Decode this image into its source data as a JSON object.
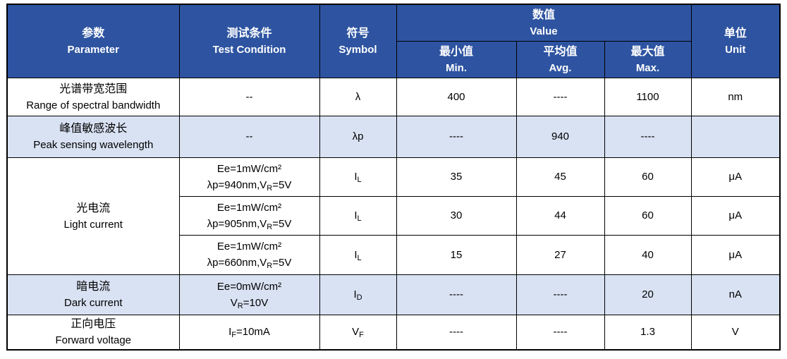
{
  "colors": {
    "header_bg": "#2e54a1",
    "header_text": "#ffffff",
    "shaded_row_bg": "#d9e2f3",
    "row_bg": "#ffffff",
    "border": "#000000",
    "body_text": "#000000"
  },
  "table": {
    "header": {
      "parameter_zh": "参数",
      "parameter_en": "Parameter",
      "test_condition_zh": "测试条件",
      "test_condition_en": "Test Condition",
      "symbol_zh": "符号",
      "symbol_en": "Symbol",
      "value_zh": "数值",
      "value_en": "Value",
      "min_zh": "最小值",
      "min_en": "Min.",
      "avg_zh": "平均值",
      "avg_en": "Avg.",
      "max_zh": "最大值",
      "max_en": "Max.",
      "unit_zh": "单位",
      "unit_en": "Unit"
    },
    "rows": [
      {
        "param_zh": "光谱带宽范围",
        "param_en": "Range of spectral bandwidth",
        "condition_lines": [
          "--"
        ],
        "symbol": "λ",
        "min": "400",
        "avg": "----",
        "max": "1100",
        "unit": "nm",
        "shaded": false
      },
      {
        "param_zh": "峰值敏感波长",
        "param_en": "Peak sensing wavelength",
        "condition_lines": [
          "--"
        ],
        "symbol": "λp",
        "min": "----",
        "avg": "940",
        "max": "----",
        "unit": "",
        "shaded": true
      },
      {
        "param_zh": "光电流",
        "param_en": "Light current",
        "param_rowspan": 3,
        "condition_lines": [
          "Ee=1mW/cm²",
          "λp=940nm,V_R=5V"
        ],
        "symbol": "I_L",
        "min": "35",
        "avg": "45",
        "max": "60",
        "unit": "μA",
        "shaded": false
      },
      {
        "condition_lines": [
          "Ee=1mW/cm²",
          "λp=905nm,V_R=5V"
        ],
        "symbol": "I_L",
        "min": "30",
        "avg": "44",
        "max": "60",
        "unit": "μA",
        "shaded": false
      },
      {
        "condition_lines": [
          "Ee=1mW/cm²",
          "λp=660nm,V_R=5V"
        ],
        "symbol": "I_L",
        "min": "15",
        "avg": "27",
        "max": "40",
        "unit": "μA",
        "shaded": false
      },
      {
        "param_zh": "暗电流",
        "param_en": "Dark current",
        "condition_lines": [
          "Ee=0mW/cm²",
          "V_R=10V"
        ],
        "symbol": "I_D",
        "min": "----",
        "avg": "----",
        "max": "20",
        "unit": "nA",
        "shaded": true
      },
      {
        "param_zh": "正向电压",
        "param_en": "Forward voltage",
        "condition_lines": [
          "I_F=10mA"
        ],
        "symbol": "V_F",
        "min": "----",
        "avg": "----",
        "max": "1.3",
        "unit": "V",
        "shaded": false
      }
    ]
  }
}
